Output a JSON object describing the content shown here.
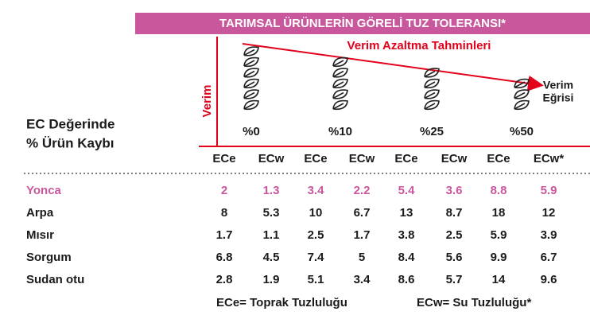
{
  "title": "TARIMSAL ÜRÜNLERİN GÖRELİ TUZ TOLERANSI*",
  "diagram": {
    "y_label": "Verim",
    "arrow_label": "Verim Azaltma Tahminleri",
    "curve_label": [
      "Verim",
      "Eğrisi"
    ],
    "losses": [
      "%0",
      "%10",
      "%25",
      "%50"
    ]
  },
  "table": {
    "corner": [
      "EC Değerinde",
      "% Ürün Kaybı"
    ],
    "columns": [
      "ECe",
      "ECw",
      "ECe",
      "ECw",
      "ECe",
      "ECw",
      "ECe",
      "ECw*"
    ],
    "rows": [
      {
        "name": "Yonca",
        "values": [
          2,
          1.3,
          3.4,
          2.2,
          5.4,
          3.6,
          8.8,
          5.9
        ]
      },
      {
        "name": "Arpa",
        "values": [
          8,
          5.3,
          10,
          6.7,
          13,
          8.7,
          18,
          12
        ]
      },
      {
        "name": "Mısır",
        "values": [
          1.7,
          1.1,
          2.5,
          1.7,
          3.8,
          2.5,
          5.9,
          3.9
        ]
      },
      {
        "name": "Sorgum",
        "values": [
          6.8,
          4.5,
          7.4,
          5,
          8.4,
          5.6,
          9.9,
          6.7
        ]
      },
      {
        "name": "Sudan otu",
        "values": [
          2.8,
          1.9,
          5.1,
          3.4,
          8.6,
          5.7,
          14,
          9.6
        ]
      }
    ]
  },
  "footnotes": [
    "ECe= Toprak Tuzluluğu",
    "ECw= Su Tuzluluğu*"
  ]
}
